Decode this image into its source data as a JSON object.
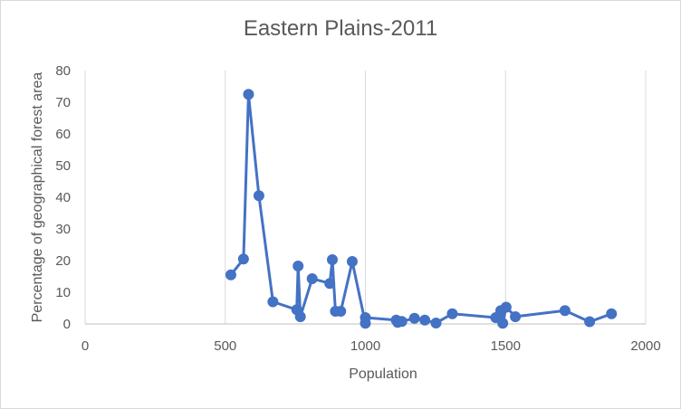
{
  "chart_data": {
    "type": "line",
    "title": "Eastern Plains-2011",
    "xlabel": "Population",
    "ylabel": "Percentage of geographical forest area",
    "xlim": [
      0,
      2000
    ],
    "ylim": [
      0,
      80
    ],
    "x_ticks": [
      0,
      500,
      1000,
      1500,
      2000
    ],
    "y_ticks": [
      0,
      10,
      20,
      30,
      40,
      50,
      60,
      70,
      80
    ],
    "grid": "vertical",
    "legend": "none",
    "series_color": "#4472c4",
    "series": [
      {
        "x": [
          520,
          565,
          583,
          620,
          670,
          755,
          760,
          768,
          810,
          873,
          882,
          893,
          912,
          953,
          1000,
          1000,
          1110,
          1115,
          1130,
          1175,
          1212,
          1252,
          1310,
          1465,
          1483,
          1490,
          1502,
          1535,
          1712,
          1800,
          1878
        ],
        "y": [
          15.5,
          20.5,
          72.5,
          40.5,
          7.0,
          4.5,
          18.3,
          2.3,
          14.3,
          12.8,
          20.3,
          4.0,
          4.0,
          19.7,
          0.2,
          2.0,
          1.2,
          0.5,
          0.8,
          1.8,
          1.2,
          0.3,
          3.2,
          2.0,
          4.2,
          0.2,
          5.3,
          2.3,
          4.2,
          0.7,
          3.2
        ]
      }
    ]
  }
}
